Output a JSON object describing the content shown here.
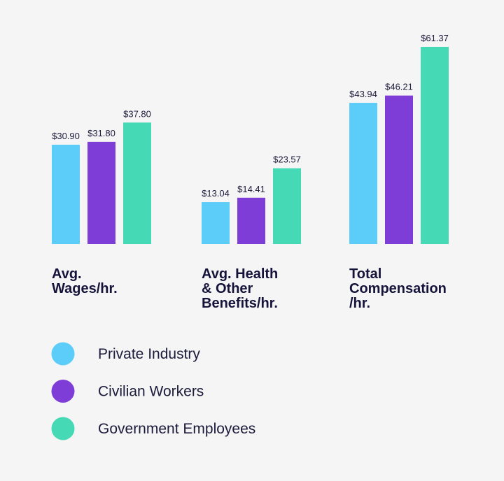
{
  "chart_data": {
    "type": "bar",
    "categories": [
      "Avg. Wages/hr.",
      "Avg. Health & Other Benefits/hr.",
      "Total Compensation/hr."
    ],
    "category_lines": [
      [
        "Avg.",
        "Wages/hr."
      ],
      [
        "Avg. Health",
        "& Other",
        "Benefits/hr."
      ],
      [
        "Total",
        "Compensation",
        "/hr."
      ]
    ],
    "series": [
      {
        "name": "Private Industry",
        "color": "#5bcdf8",
        "values": [
          30.9,
          13.04,
          43.94
        ],
        "labels": [
          "$30.90",
          "$13.04",
          "$43.94"
        ]
      },
      {
        "name": "Civilian Workers",
        "color": "#7e3dd6",
        "values": [
          31.8,
          14.41,
          46.21
        ],
        "labels": [
          "$31.80",
          "$14.41",
          "$46.21"
        ]
      },
      {
        "name": "Government Employees",
        "color": "#45d9b6",
        "values": [
          37.8,
          23.57,
          61.37
        ],
        "labels": [
          "$37.80",
          "$23.57",
          "$61.37"
        ]
      }
    ],
    "ylim": [
      0,
      61.37
    ],
    "grid": false,
    "axes_visible": false,
    "legend_placement": "bottom-left",
    "background": "#f5f5f5"
  }
}
